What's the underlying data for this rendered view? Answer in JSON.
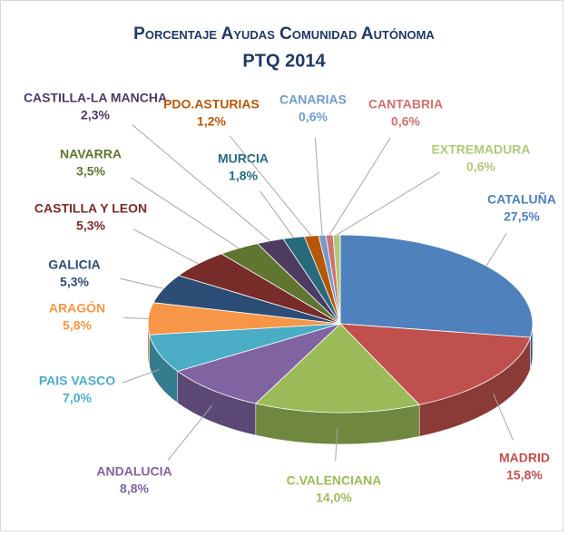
{
  "chart_data": {
    "type": "pie",
    "title": "Porcentaje Ayudas Comunidad Autónoma",
    "subtitle": "PTQ 2014",
    "categories": [
      "CATALUÑA",
      "MADRID",
      "C.VALENCIANA",
      "ANDALUCIA",
      "PAIS VASCO",
      "ARAGÓN",
      "GALICIA",
      "CASTILLA Y LEON",
      "NAVARRA",
      "CASTILLA-LA MANCHA",
      "MURCIA",
      "PDO.ASTURIAS",
      "CANARIAS",
      "CANTABRIA",
      "EXTREMADURA"
    ],
    "values": [
      27.5,
      15.8,
      14.0,
      8.8,
      7.0,
      5.8,
      5.3,
      5.3,
      3.5,
      2.3,
      1.8,
      1.2,
      0.6,
      0.6,
      0.6
    ],
    "value_labels": [
      "27,5%",
      "15,8%",
      "14,0%",
      "8,8%",
      "7,0%",
      "5,8%",
      "5,3%",
      "5,3%",
      "3,5%",
      "2,3%",
      "1,8%",
      "1,2%",
      "0,6%",
      "0,6%",
      "0,6%"
    ],
    "colors": [
      "#4f81bd",
      "#c0504d",
      "#9bbb59",
      "#8064a2",
      "#4bacc6",
      "#f79646",
      "#2c4d75",
      "#772c2a",
      "#5f7530",
      "#4d3b62",
      "#276a7c",
      "#b65708",
      "#729aca",
      "#cd7371",
      "#afc97a"
    ]
  }
}
